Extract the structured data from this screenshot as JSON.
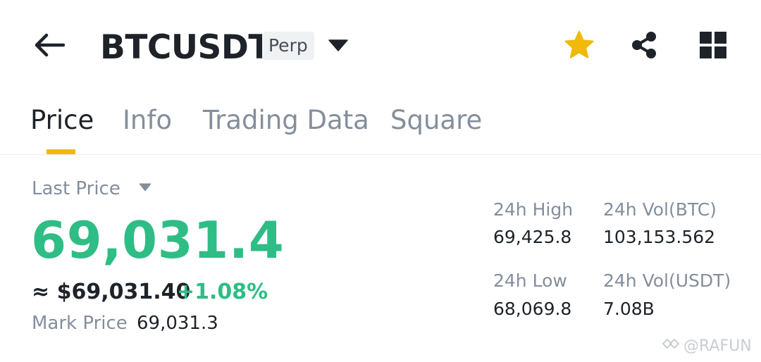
{
  "header": {
    "symbol": "BTCUSDT",
    "contract_type": "Perp",
    "icons": {
      "back": "arrow-left-icon",
      "dropdown": "caret-down-icon",
      "favorite": "star-icon",
      "share": "share-icon",
      "more": "grid-icon"
    },
    "favorite_color": "#f0b90b"
  },
  "tabs": [
    {
      "label": "Price",
      "active": true
    },
    {
      "label": "Info",
      "active": false
    },
    {
      "label": "Trading Data",
      "active": false
    },
    {
      "label": "Square",
      "active": false
    }
  ],
  "price": {
    "label": "Last Price",
    "value": "69,031.4",
    "usd_equivalent": "≈ $69,031.40",
    "change_percent": "+1.08%",
    "mark_label": "Mark Price",
    "mark_value": "69,031.3",
    "up_color": "#2ebd85"
  },
  "stats": {
    "high_label": "24h High",
    "high_value": "69,425.8",
    "vol_btc_label": "24h Vol(BTC)",
    "vol_btc_value": "103,153.562",
    "low_label": "24h Low",
    "low_value": "68,069.8",
    "vol_usdt_label": "24h Vol(USDT)",
    "vol_usdt_value": "7.08B"
  },
  "watermark": {
    "text": "@RAFUN"
  }
}
